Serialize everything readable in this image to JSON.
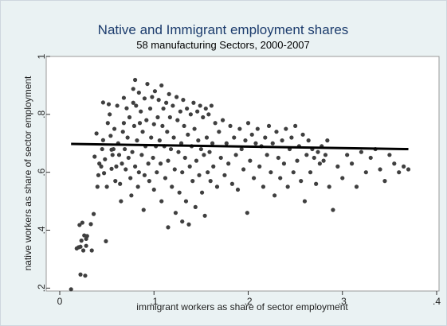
{
  "chart_data": {
    "type": "scatter",
    "title": "Native and Immigrant employment shares",
    "subtitle": "58 manufacturing Sectors, 2000-2007",
    "xlabel": "immigrant workers as share of sector employment",
    "ylabel": "native workers as share of sector employment",
    "xlim": [
      0,
      0.4
    ],
    "ylim": [
      0.19,
      1.0
    ],
    "x_ticks": [
      0,
      0.1,
      0.2,
      0.3,
      0.4
    ],
    "x_tick_labels": [
      "0",
      ".1",
      ".2",
      ".3",
      ".4"
    ],
    "y_ticks": [
      0.2,
      0.4,
      0.6,
      0.8,
      1.0
    ],
    "y_tick_labels": [
      ".2",
      ".4",
      ".6",
      ".8",
      "1"
    ],
    "grid": false,
    "fit_line": {
      "x": [
        0.012,
        0.37
      ],
      "y": [
        0.698,
        0.68
      ]
    },
    "marker_color": "#3f3f3f",
    "line_color": "#000000",
    "points": [
      [
        0.012,
        0.196
      ],
      [
        0.018,
        0.337
      ],
      [
        0.02,
        0.341
      ],
      [
        0.021,
        0.418
      ],
      [
        0.022,
        0.247
      ],
      [
        0.022,
        0.343
      ],
      [
        0.023,
        0.364
      ],
      [
        0.024,
        0.426
      ],
      [
        0.025,
        0.33
      ],
      [
        0.026,
        0.382
      ],
      [
        0.027,
        0.243
      ],
      [
        0.028,
        0.37
      ],
      [
        0.028,
        0.346
      ],
      [
        0.029,
        0.38
      ],
      [
        0.033,
        0.421
      ],
      [
        0.034,
        0.33
      ],
      [
        0.036,
        0.456
      ],
      [
        0.037,
        0.654
      ],
      [
        0.039,
        0.734
      ],
      [
        0.04,
        0.55
      ],
      [
        0.041,
        0.59
      ],
      [
        0.042,
        0.63
      ],
      [
        0.044,
        0.62
      ],
      [
        0.045,
        0.68
      ],
      [
        0.046,
        0.841
      ],
      [
        0.046,
        0.711
      ],
      [
        0.047,
        0.597
      ],
      [
        0.048,
        0.645
      ],
      [
        0.049,
        0.362
      ],
      [
        0.05,
        0.55
      ],
      [
        0.051,
        0.77
      ],
      [
        0.052,
        0.835
      ],
      [
        0.053,
        0.8
      ],
      [
        0.054,
        0.726
      ],
      [
        0.055,
        0.678
      ],
      [
        0.055,
        0.612
      ],
      [
        0.056,
        0.66
      ],
      [
        0.057,
        0.68
      ],
      [
        0.058,
        0.75
      ],
      [
        0.059,
        0.57
      ],
      [
        0.06,
        0.62
      ],
      [
        0.061,
        0.83
      ],
      [
        0.062,
        0.7
      ],
      [
        0.063,
        0.66
      ],
      [
        0.064,
        0.56
      ],
      [
        0.065,
        0.5
      ],
      [
        0.066,
        0.63
      ],
      [
        0.067,
        0.74
      ],
      [
        0.068,
        0.857
      ],
      [
        0.068,
        0.77
      ],
      [
        0.069,
        0.68
      ],
      [
        0.07,
        0.61
      ],
      [
        0.071,
        0.821
      ],
      [
        0.072,
        0.72
      ],
      [
        0.073,
        0.65
      ],
      [
        0.074,
        0.79
      ],
      [
        0.075,
        0.58
      ],
      [
        0.076,
        0.52
      ],
      [
        0.077,
        0.67
      ],
      [
        0.078,
        0.888
      ],
      [
        0.078,
        0.84
      ],
      [
        0.079,
        0.76
      ],
      [
        0.08,
        0.919
      ],
      [
        0.08,
        0.62
      ],
      [
        0.081,
        0.83
      ],
      [
        0.082,
        0.71
      ],
      [
        0.083,
        0.55
      ],
      [
        0.084,
        0.875
      ],
      [
        0.084,
        0.6
      ],
      [
        0.085,
        0.77
      ],
      [
        0.086,
        0.81
      ],
      [
        0.087,
        0.66
      ],
      [
        0.088,
        0.74
      ],
      [
        0.089,
        0.47
      ],
      [
        0.09,
        0.855
      ],
      [
        0.09,
        0.59
      ],
      [
        0.091,
        0.69
      ],
      [
        0.092,
        0.78
      ],
      [
        0.093,
        0.905
      ],
      [
        0.094,
        0.63
      ],
      [
        0.095,
        0.57
      ],
      [
        0.096,
        0.82
      ],
      [
        0.097,
        0.72
      ],
      [
        0.098,
        0.86
      ],
      [
        0.099,
        0.65
      ],
      [
        0.1,
        0.766
      ],
      [
        0.1,
        0.54
      ],
      [
        0.101,
        0.88
      ],
      [
        0.102,
        0.69
      ],
      [
        0.103,
        0.6
      ],
      [
        0.104,
        0.79
      ],
      [
        0.105,
        0.85
      ],
      [
        0.106,
        0.71
      ],
      [
        0.107,
        0.63
      ],
      [
        0.108,
        0.9
      ],
      [
        0.108,
        0.5
      ],
      [
        0.109,
        0.76
      ],
      [
        0.11,
        0.82
      ],
      [
        0.111,
        0.69
      ],
      [
        0.112,
        0.58
      ],
      [
        0.113,
        0.84
      ],
      [
        0.114,
        0.74
      ],
      [
        0.115,
        0.41
      ],
      [
        0.115,
        0.64
      ],
      [
        0.116,
        0.87
      ],
      [
        0.117,
        0.79
      ],
      [
        0.118,
        0.68
      ],
      [
        0.119,
        0.55
      ],
      [
        0.12,
        0.83
      ],
      [
        0.121,
        0.72
      ],
      [
        0.122,
        0.61
      ],
      [
        0.123,
        0.46
      ],
      [
        0.124,
        0.86
      ],
      [
        0.125,
        0.78
      ],
      [
        0.126,
        0.67
      ],
      [
        0.127,
        0.53
      ],
      [
        0.128,
        0.81
      ],
      [
        0.129,
        0.7
      ],
      [
        0.13,
        0.43
      ],
      [
        0.13,
        0.6
      ],
      [
        0.131,
        0.85
      ],
      [
        0.132,
        0.76
      ],
      [
        0.133,
        0.65
      ],
      [
        0.134,
        0.5
      ],
      [
        0.135,
        0.82
      ],
      [
        0.136,
        0.73
      ],
      [
        0.137,
        0.42
      ],
      [
        0.138,
        0.62
      ],
      [
        0.139,
        0.8
      ],
      [
        0.14,
        0.69
      ],
      [
        0.141,
        0.57
      ],
      [
        0.142,
        0.84
      ],
      [
        0.143,
        0.75
      ],
      [
        0.144,
        0.48
      ],
      [
        0.145,
        0.64
      ],
      [
        0.146,
        0.81
      ],
      [
        0.147,
        0.71
      ],
      [
        0.148,
        0.59
      ],
      [
        0.149,
        0.83
      ],
      [
        0.15,
        0.68
      ],
      [
        0.151,
        0.53
      ],
      [
        0.152,
        0.79
      ],
      [
        0.153,
        0.66
      ],
      [
        0.154,
        0.45
      ],
      [
        0.155,
        0.82
      ],
      [
        0.156,
        0.72
      ],
      [
        0.157,
        0.6
      ],
      [
        0.158,
        0.8
      ],
      [
        0.159,
        0.67
      ],
      [
        0.16,
        0.57
      ],
      [
        0.161,
        0.83
      ],
      [
        0.162,
        0.7
      ],
      [
        0.163,
        0.62
      ],
      [
        0.165,
        0.77
      ],
      [
        0.167,
        0.55
      ],
      [
        0.169,
        0.74
      ],
      [
        0.171,
        0.65
      ],
      [
        0.173,
        0.78
      ],
      [
        0.175,
        0.59
      ],
      [
        0.177,
        0.7
      ],
      [
        0.179,
        0.63
      ],
      [
        0.181,
        0.76
      ],
      [
        0.183,
        0.56
      ],
      [
        0.185,
        0.72
      ],
      [
        0.187,
        0.66
      ],
      [
        0.189,
        0.54
      ],
      [
        0.191,
        0.75
      ],
      [
        0.193,
        0.68
      ],
      [
        0.195,
        0.61
      ],
      [
        0.197,
        0.71
      ],
      [
        0.199,
        0.46
      ],
      [
        0.2,
        0.77
      ],
      [
        0.202,
        0.64
      ],
      [
        0.204,
        0.73
      ],
      [
        0.206,
        0.58
      ],
      [
        0.208,
        0.7
      ],
      [
        0.21,
        0.75
      ],
      [
        0.212,
        0.62
      ],
      [
        0.214,
        0.69
      ],
      [
        0.216,
        0.55
      ],
      [
        0.218,
        0.72
      ],
      [
        0.22,
        0.66
      ],
      [
        0.222,
        0.76
      ],
      [
        0.224,
        0.6
      ],
      [
        0.226,
        0.7
      ],
      [
        0.228,
        0.52
      ],
      [
        0.23,
        0.74
      ],
      [
        0.232,
        0.65
      ],
      [
        0.234,
        0.58
      ],
      [
        0.236,
        0.71
      ],
      [
        0.238,
        0.63
      ],
      [
        0.24,
        0.75
      ],
      [
        0.242,
        0.55
      ],
      [
        0.244,
        0.68
      ],
      [
        0.246,
        0.72
      ],
      [
        0.248,
        0.6
      ],
      [
        0.25,
        0.76
      ],
      [
        0.252,
        0.64
      ],
      [
        0.254,
        0.69
      ],
      [
        0.256,
        0.57
      ],
      [
        0.258,
        0.73
      ],
      [
        0.26,
        0.5
      ],
      [
        0.262,
        0.66
      ],
      [
        0.264,
        0.71
      ],
      [
        0.266,
        0.6
      ],
      [
        0.268,
        0.68
      ],
      [
        0.27,
        0.65
      ],
      [
        0.272,
        0.56
      ],
      [
        0.274,
        0.67
      ],
      [
        0.276,
        0.63
      ],
      [
        0.278,
        0.69
      ],
      [
        0.28,
        0.64
      ],
      [
        0.282,
        0.66
      ],
      [
        0.284,
        0.71
      ],
      [
        0.286,
        0.55
      ],
      [
        0.29,
        0.47
      ],
      [
        0.295,
        0.62
      ],
      [
        0.3,
        0.58
      ],
      [
        0.305,
        0.66
      ],
      [
        0.31,
        0.63
      ],
      [
        0.315,
        0.55
      ],
      [
        0.32,
        0.67
      ],
      [
        0.325,
        0.6
      ],
      [
        0.33,
        0.65
      ],
      [
        0.335,
        0.68
      ],
      [
        0.34,
        0.61
      ],
      [
        0.345,
        0.57
      ],
      [
        0.35,
        0.66
      ],
      [
        0.355,
        0.63
      ],
      [
        0.36,
        0.6
      ],
      [
        0.365,
        0.62
      ],
      [
        0.37,
        0.61
      ]
    ]
  }
}
